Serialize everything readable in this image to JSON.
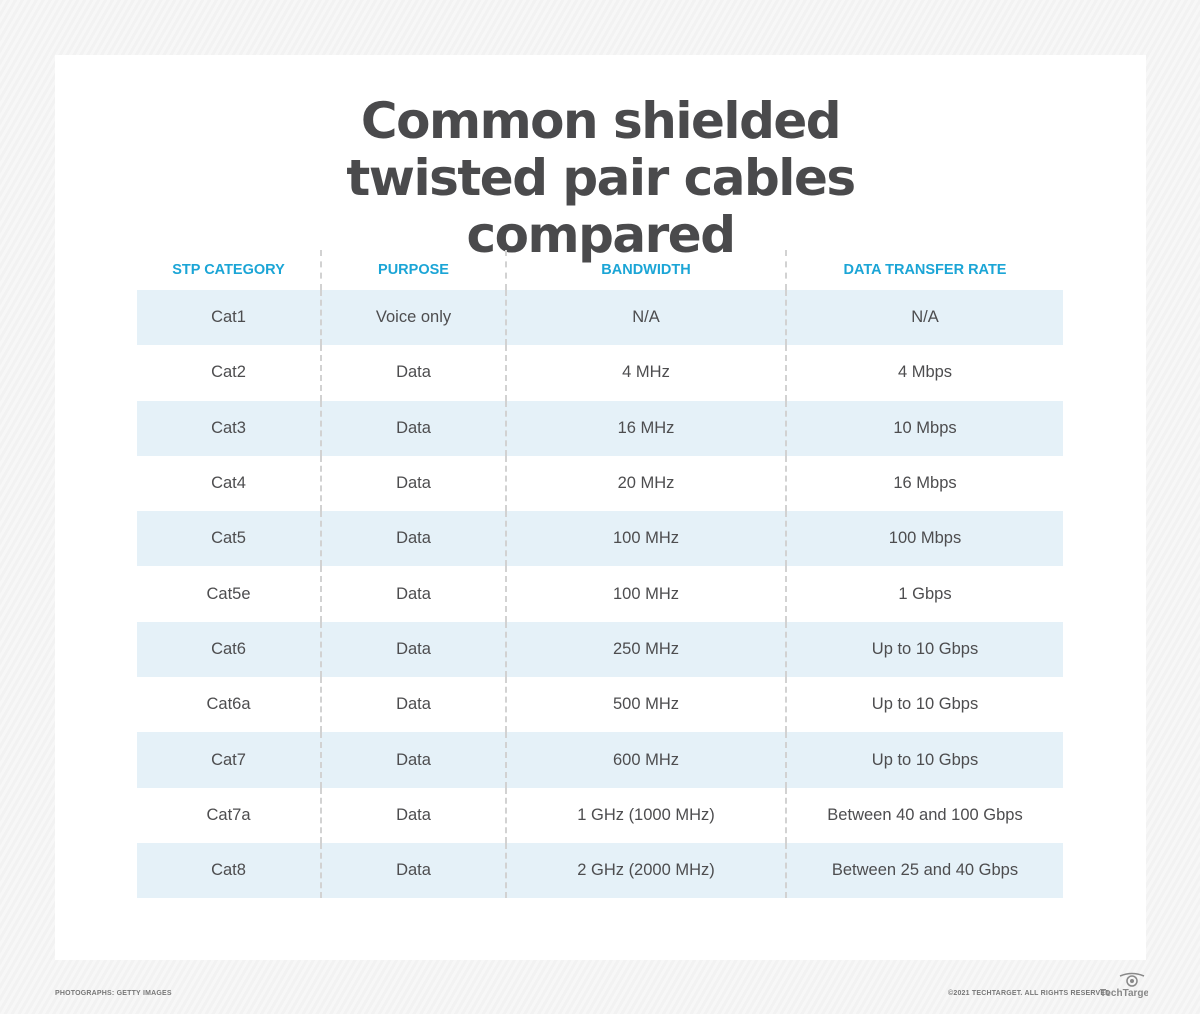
{
  "title": "Common shielded twisted pair cables compared",
  "table": {
    "headers": [
      "STP CATEGORY",
      "PURPOSE",
      "BANDWIDTH",
      "DATA TRANSFER RATE"
    ],
    "rows": [
      [
        "Cat1",
        "Voice only",
        "N/A",
        "N/A"
      ],
      [
        "Cat2",
        "Data",
        "4 MHz",
        "4 Mbps"
      ],
      [
        "Cat3",
        "Data",
        "16 MHz",
        "10 Mbps"
      ],
      [
        "Cat4",
        "Data",
        "20 MHz",
        "16 Mbps"
      ],
      [
        "Cat5",
        "Data",
        "100 MHz",
        "100 Mbps"
      ],
      [
        "Cat5e",
        "Data",
        "100 MHz",
        "1 Gbps"
      ],
      [
        "Cat6",
        "Data",
        "250 MHz",
        "Up to 10 Gbps"
      ],
      [
        "Cat6a",
        "Data",
        "500 MHz",
        "Up to 10 Gbps"
      ],
      [
        "Cat7",
        "Data",
        "600 MHz",
        "Up to 10 Gbps"
      ],
      [
        "Cat7a",
        "Data",
        "1 GHz (1000 MHz)",
        "Between 40 and 100 Gbps"
      ],
      [
        "Cat8",
        "Data",
        "2 GHz (2000 MHz)",
        "Between 25 and 40 Gbps"
      ]
    ]
  },
  "footer": {
    "credit": "PHOTOGRAPHS: GETTY IMAGES",
    "copyright": "©2021 TECHTARGET. ALL RIGHTS RESERVED",
    "logo": "TechTarget"
  },
  "colors": {
    "header": "#1ba5d6",
    "row_band": "#e5f1f8",
    "text": "#4d4d4f"
  }
}
